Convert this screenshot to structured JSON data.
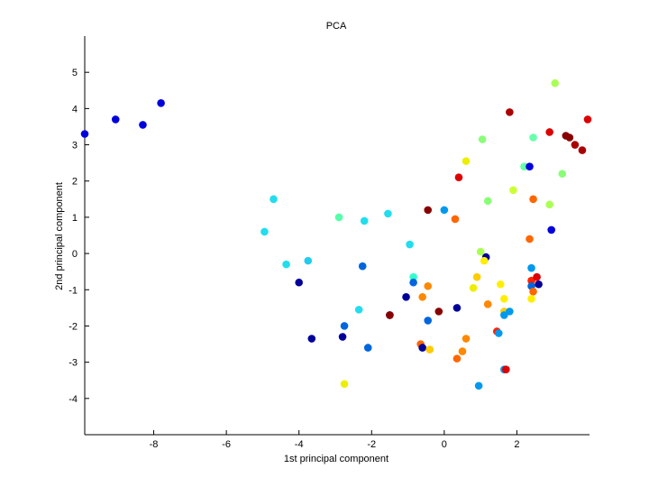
{
  "chart_data": {
    "type": "scatter",
    "title": "PCA",
    "xlabel": "1st principal component",
    "ylabel": "2nd principal component",
    "xlim": [
      -9.9,
      4.0
    ],
    "ylim": [
      -5,
      6
    ],
    "xticks": [
      -8,
      -6,
      -4,
      -2,
      0,
      2
    ],
    "yticks": [
      -4,
      -3,
      -2,
      -1,
      0,
      1,
      2,
      3,
      4,
      5
    ],
    "grid": false,
    "points": [
      {
        "x": -9.9,
        "y": 3.3,
        "color": "#0000dd"
      },
      {
        "x": -9.05,
        "y": 3.7,
        "color": "#0000dd"
      },
      {
        "x": -8.3,
        "y": 3.55,
        "color": "#0000dd"
      },
      {
        "x": -7.8,
        "y": 4.15,
        "color": "#0000dd"
      },
      {
        "x": -4.95,
        "y": 0.6,
        "color": "#22ddee"
      },
      {
        "x": -4.7,
        "y": 1.5,
        "color": "#22ddee"
      },
      {
        "x": -4.35,
        "y": -0.3,
        "color": "#22ddee"
      },
      {
        "x": -4.0,
        "y": -0.8,
        "color": "#000099"
      },
      {
        "x": -3.75,
        "y": -0.2,
        "color": "#22ccee"
      },
      {
        "x": -3.65,
        "y": -2.35,
        "color": "#000099"
      },
      {
        "x": -2.9,
        "y": 1.0,
        "color": "#55ffaa"
      },
      {
        "x": -2.8,
        "y": -2.3,
        "color": "#000099"
      },
      {
        "x": -2.75,
        "y": -3.6,
        "color": "#eeee00"
      },
      {
        "x": -2.75,
        "y": -2.0,
        "color": "#0066dd"
      },
      {
        "x": -2.35,
        "y": -1.55,
        "color": "#22ddee"
      },
      {
        "x": -2.25,
        "y": -0.35,
        "color": "#0066dd"
      },
      {
        "x": -2.2,
        "y": 0.9,
        "color": "#22ddee"
      },
      {
        "x": -2.1,
        "y": -2.6,
        "color": "#0066dd"
      },
      {
        "x": -1.55,
        "y": 1.1,
        "color": "#22ddee"
      },
      {
        "x": -1.5,
        "y": -1.7,
        "color": "#000099"
      },
      {
        "x": -1.5,
        "y": -1.7,
        "color": "#880000"
      },
      {
        "x": -1.05,
        "y": -1.2,
        "color": "#000099"
      },
      {
        "x": -0.95,
        "y": 0.25,
        "color": "#22ddee"
      },
      {
        "x": -0.85,
        "y": -0.65,
        "color": "#33ffcc"
      },
      {
        "x": -0.85,
        "y": -0.8,
        "color": "#0066dd"
      },
      {
        "x": -0.65,
        "y": -2.5,
        "color": "#ff6600"
      },
      {
        "x": -0.6,
        "y": -2.6,
        "color": "#000099"
      },
      {
        "x": -0.6,
        "y": -1.2,
        "color": "#ff8800"
      },
      {
        "x": -0.45,
        "y": 1.2,
        "color": "#880000"
      },
      {
        "x": -0.45,
        "y": -0.9,
        "color": "#ff8800"
      },
      {
        "x": -0.45,
        "y": -1.85,
        "color": "#0066dd"
      },
      {
        "x": -0.4,
        "y": -2.65,
        "color": "#ffcc00"
      },
      {
        "x": -0.15,
        "y": -1.6,
        "color": "#880000"
      },
      {
        "x": 0.0,
        "y": 1.2,
        "color": "#0099ee"
      },
      {
        "x": 0.3,
        "y": 0.95,
        "color": "#ff6600"
      },
      {
        "x": 0.35,
        "y": -1.5,
        "color": "#000099"
      },
      {
        "x": 0.35,
        "y": -2.9,
        "color": "#ff6600"
      },
      {
        "x": 0.4,
        "y": 2.1,
        "color": "#dd0000"
      },
      {
        "x": 0.5,
        "y": -2.7,
        "color": "#ff8800"
      },
      {
        "x": 0.6,
        "y": 2.55,
        "color": "#eeee00"
      },
      {
        "x": 0.6,
        "y": -2.35,
        "color": "#ff8800"
      },
      {
        "x": 0.8,
        "y": -0.95,
        "color": "#eeee00"
      },
      {
        "x": 0.9,
        "y": -0.65,
        "color": "#ffcc00"
      },
      {
        "x": 0.95,
        "y": -3.65,
        "color": "#0099ee"
      },
      {
        "x": 1.0,
        "y": 0.05,
        "color": "#aaff55"
      },
      {
        "x": 1.05,
        "y": 3.15,
        "color": "#88ff77"
      },
      {
        "x": 1.15,
        "y": -0.1,
        "color": "#000099"
      },
      {
        "x": 1.1,
        "y": -0.2,
        "color": "#ffee00"
      },
      {
        "x": 1.2,
        "y": 1.45,
        "color": "#88ff77"
      },
      {
        "x": 1.2,
        "y": -1.4,
        "color": "#ff8800"
      },
      {
        "x": 1.45,
        "y": -2.15,
        "color": "#ff2200"
      },
      {
        "x": 1.5,
        "y": -2.2,
        "color": "#0099ee"
      },
      {
        "x": 1.55,
        "y": -0.85,
        "color": "#ffee00"
      },
      {
        "x": 1.65,
        "y": -1.25,
        "color": "#ffee00"
      },
      {
        "x": 1.65,
        "y": -1.6,
        "color": "#ffcc00"
      },
      {
        "x": 1.65,
        "y": -1.7,
        "color": "#0099ee"
      },
      {
        "x": 1.65,
        "y": -3.2,
        "color": "#0099ee"
      },
      {
        "x": 1.7,
        "y": -3.2,
        "color": "#dd0000"
      },
      {
        "x": 1.8,
        "y": 3.9,
        "color": "#aa0000"
      },
      {
        "x": 1.8,
        "y": -1.6,
        "color": "#0099ee"
      },
      {
        "x": 1.9,
        "y": 1.75,
        "color": "#ccff33"
      },
      {
        "x": 2.2,
        "y": 2.4,
        "color": "#66ffaa"
      },
      {
        "x": 2.35,
        "y": 2.4,
        "color": "#0000dd"
      },
      {
        "x": 2.35,
        "y": 0.4,
        "color": "#ff6600"
      },
      {
        "x": 2.4,
        "y": -0.4,
        "color": "#0099ee"
      },
      {
        "x": 2.4,
        "y": -0.75,
        "color": "#ff2200"
      },
      {
        "x": 2.4,
        "y": -0.9,
        "color": "#0066dd"
      },
      {
        "x": 2.45,
        "y": 3.2,
        "color": "#66ffaa"
      },
      {
        "x": 2.45,
        "y": 1.5,
        "color": "#ff6600"
      },
      {
        "x": 2.45,
        "y": -1.05,
        "color": "#ff6600"
      },
      {
        "x": 2.4,
        "y": -1.25,
        "color": "#ffee00"
      },
      {
        "x": 2.55,
        "y": -0.65,
        "color": "#dd0000"
      },
      {
        "x": 2.6,
        "y": -0.85,
        "color": "#000099"
      },
      {
        "x": 2.9,
        "y": 3.35,
        "color": "#dd0000"
      },
      {
        "x": 2.9,
        "y": 1.35,
        "color": "#aaff55"
      },
      {
        "x": 2.95,
        "y": 0.65,
        "color": "#0000dd"
      },
      {
        "x": 3.05,
        "y": 4.7,
        "color": "#aaff55"
      },
      {
        "x": 3.25,
        "y": 2.2,
        "color": "#88ff77"
      },
      {
        "x": 3.35,
        "y": 3.25,
        "color": "#880000"
      },
      {
        "x": 3.45,
        "y": 3.2,
        "color": "#880000"
      },
      {
        "x": 3.6,
        "y": 3.0,
        "color": "#aa0000"
      },
      {
        "x": 3.8,
        "y": 2.85,
        "color": "#aa0000"
      },
      {
        "x": 3.95,
        "y": 3.7,
        "color": "#dd0000"
      }
    ]
  }
}
